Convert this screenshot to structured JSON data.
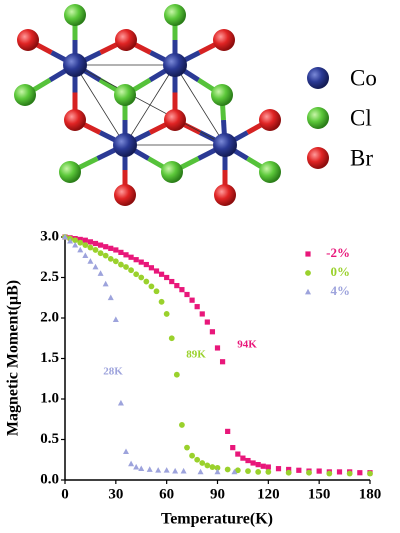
{
  "structure": {
    "legend": [
      "Co",
      "Cl",
      "Br"
    ]
  },
  "chart_data": {
    "type": "scatter",
    "xlabel": "Temperature(K)",
    "ylabel": "Magnetic Moment(μB)",
    "xlim": [
      0,
      180
    ],
    "xticks": [
      0,
      30,
      60,
      90,
      120,
      150,
      180
    ],
    "ylim": [
      0,
      3
    ],
    "yticks": [
      {
        "value": 0,
        "label": "0.0"
      },
      0.5,
      {
        "value": 1,
        "label": "1.0"
      },
      1.5,
      {
        "value": 2,
        "label": "2.0"
      },
      2.5,
      {
        "value": 3,
        "label": "3.0"
      }
    ],
    "series": [
      {
        "name": "-2%",
        "color": "#e8177a",
        "marker": "square",
        "x": [
          0,
          3,
          6,
          9,
          12,
          15,
          18,
          21,
          24,
          27,
          30,
          33,
          36,
          39,
          42,
          45,
          48,
          51,
          54,
          57,
          60,
          63,
          66,
          69,
          72,
          75,
          78,
          81,
          84,
          87,
          90,
          93,
          96,
          99,
          102,
          105,
          108,
          111,
          114,
          117,
          120,
          126,
          132,
          138,
          144,
          150,
          156,
          162,
          168,
          174,
          180
        ],
        "values": [
          3.0,
          2.99,
          2.98,
          2.97,
          2.96,
          2.94,
          2.92,
          2.9,
          2.88,
          2.86,
          2.84,
          2.81,
          2.78,
          2.75,
          2.72,
          2.69,
          2.66,
          2.62,
          2.58,
          2.54,
          2.5,
          2.45,
          2.4,
          2.35,
          2.29,
          2.22,
          2.14,
          2.05,
          1.95,
          1.83,
          1.63,
          1.46,
          0.6,
          0.4,
          0.32,
          0.27,
          0.24,
          0.21,
          0.19,
          0.17,
          0.16,
          0.14,
          0.13,
          0.12,
          0.11,
          0.11,
          0.1,
          0.1,
          0.1,
          0.09,
          0.09
        ]
      },
      {
        "name": "0%",
        "color": "#9ad12c",
        "marker": "circle",
        "x": [
          0,
          3,
          6,
          9,
          12,
          15,
          18,
          21,
          24,
          27,
          30,
          33,
          36,
          39,
          42,
          45,
          48,
          51,
          54,
          57,
          60,
          63,
          66,
          69,
          72,
          75,
          78,
          81,
          84,
          87,
          90,
          96,
          102,
          108,
          114,
          120,
          132,
          144,
          156,
          168,
          180
        ],
        "values": [
          3.0,
          2.98,
          2.96,
          2.93,
          2.9,
          2.87,
          2.84,
          2.8,
          2.77,
          2.73,
          2.7,
          2.66,
          2.63,
          2.59,
          2.54,
          2.5,
          2.45,
          2.39,
          2.33,
          2.2,
          2.05,
          1.75,
          1.3,
          0.68,
          0.4,
          0.3,
          0.25,
          0.21,
          0.18,
          0.16,
          0.15,
          0.13,
          0.12,
          0.11,
          0.1,
          0.1,
          0.09,
          0.09,
          0.08,
          0.08,
          0.08
        ]
      },
      {
        "name": "4%",
        "color": "#9da3dc",
        "marker": "triangle",
        "x": [
          0,
          3,
          6,
          9,
          12,
          15,
          18,
          21,
          24,
          27,
          30,
          33,
          36,
          39,
          42,
          45,
          50,
          55,
          60,
          65,
          70,
          80,
          90,
          100
        ],
        "values": [
          3.0,
          2.95,
          2.9,
          2.84,
          2.77,
          2.7,
          2.63,
          2.55,
          2.42,
          2.25,
          1.98,
          0.95,
          0.35,
          0.2,
          0.16,
          0.14,
          0.13,
          0.12,
          0.12,
          0.11,
          0.11,
          0.1,
          0.1,
          0.1
        ]
      }
    ],
    "annotations": [
      "94K",
      "89K",
      "28K"
    ],
    "legend": "upper right"
  }
}
